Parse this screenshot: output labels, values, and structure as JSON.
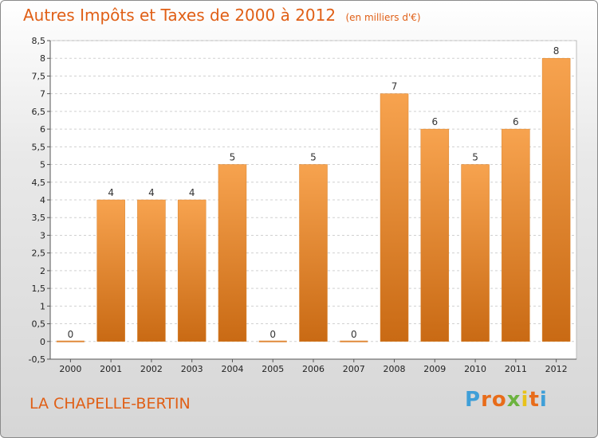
{
  "page": {
    "title": "Autres Impôts et Taxes de 2000 à 2012",
    "unit": "(en milliers d'€)",
    "town": "LA CHAPELLE-BERTIN",
    "logo": {
      "letters": [
        "P",
        "r",
        "o",
        "x",
        "i",
        "t",
        "i"
      ],
      "colors": [
        "#3f9fd8",
        "#e86c1a",
        "#e86c1a",
        "#6cb33f",
        "#e8c21a",
        "#e86c1a",
        "#3f9fd8"
      ]
    }
  },
  "chart_data": {
    "type": "bar",
    "title": "Autres Impôts et Taxes de 2000 à 2012",
    "subtitle": "(en milliers d'€)",
    "categories": [
      "2000",
      "2001",
      "2002",
      "2003",
      "2004",
      "2005",
      "2006",
      "2007",
      "2008",
      "2009",
      "2010",
      "2011",
      "2012"
    ],
    "values": [
      0,
      4,
      4,
      4,
      5,
      0,
      5,
      0,
      7,
      6,
      5,
      6,
      8
    ],
    "value_labels": [
      "0",
      "4",
      "4",
      "4",
      "5",
      "0",
      "5",
      "0",
      "7",
      "6",
      "5",
      "6",
      "8"
    ],
    "ylim": [
      -0.5,
      8.5
    ],
    "yticks": [
      "-0,5",
      "0",
      "0,5",
      "1",
      "1,5",
      "2",
      "2,5",
      "3",
      "3,5",
      "4",
      "4,5",
      "5",
      "5,5",
      "6",
      "6,5",
      "7",
      "7,5",
      "8",
      "8,5"
    ],
    "ytick_values": [
      -0.5,
      0,
      0.5,
      1,
      1.5,
      2,
      2.5,
      3,
      3.5,
      4,
      4.5,
      5,
      5.5,
      6,
      6.5,
      7,
      7.5,
      8,
      8.5
    ],
    "grid": true,
    "colors": {
      "bar_light": "#f7a34f",
      "bar_dark": "#c96a14",
      "accent": "#e05f16"
    }
  }
}
